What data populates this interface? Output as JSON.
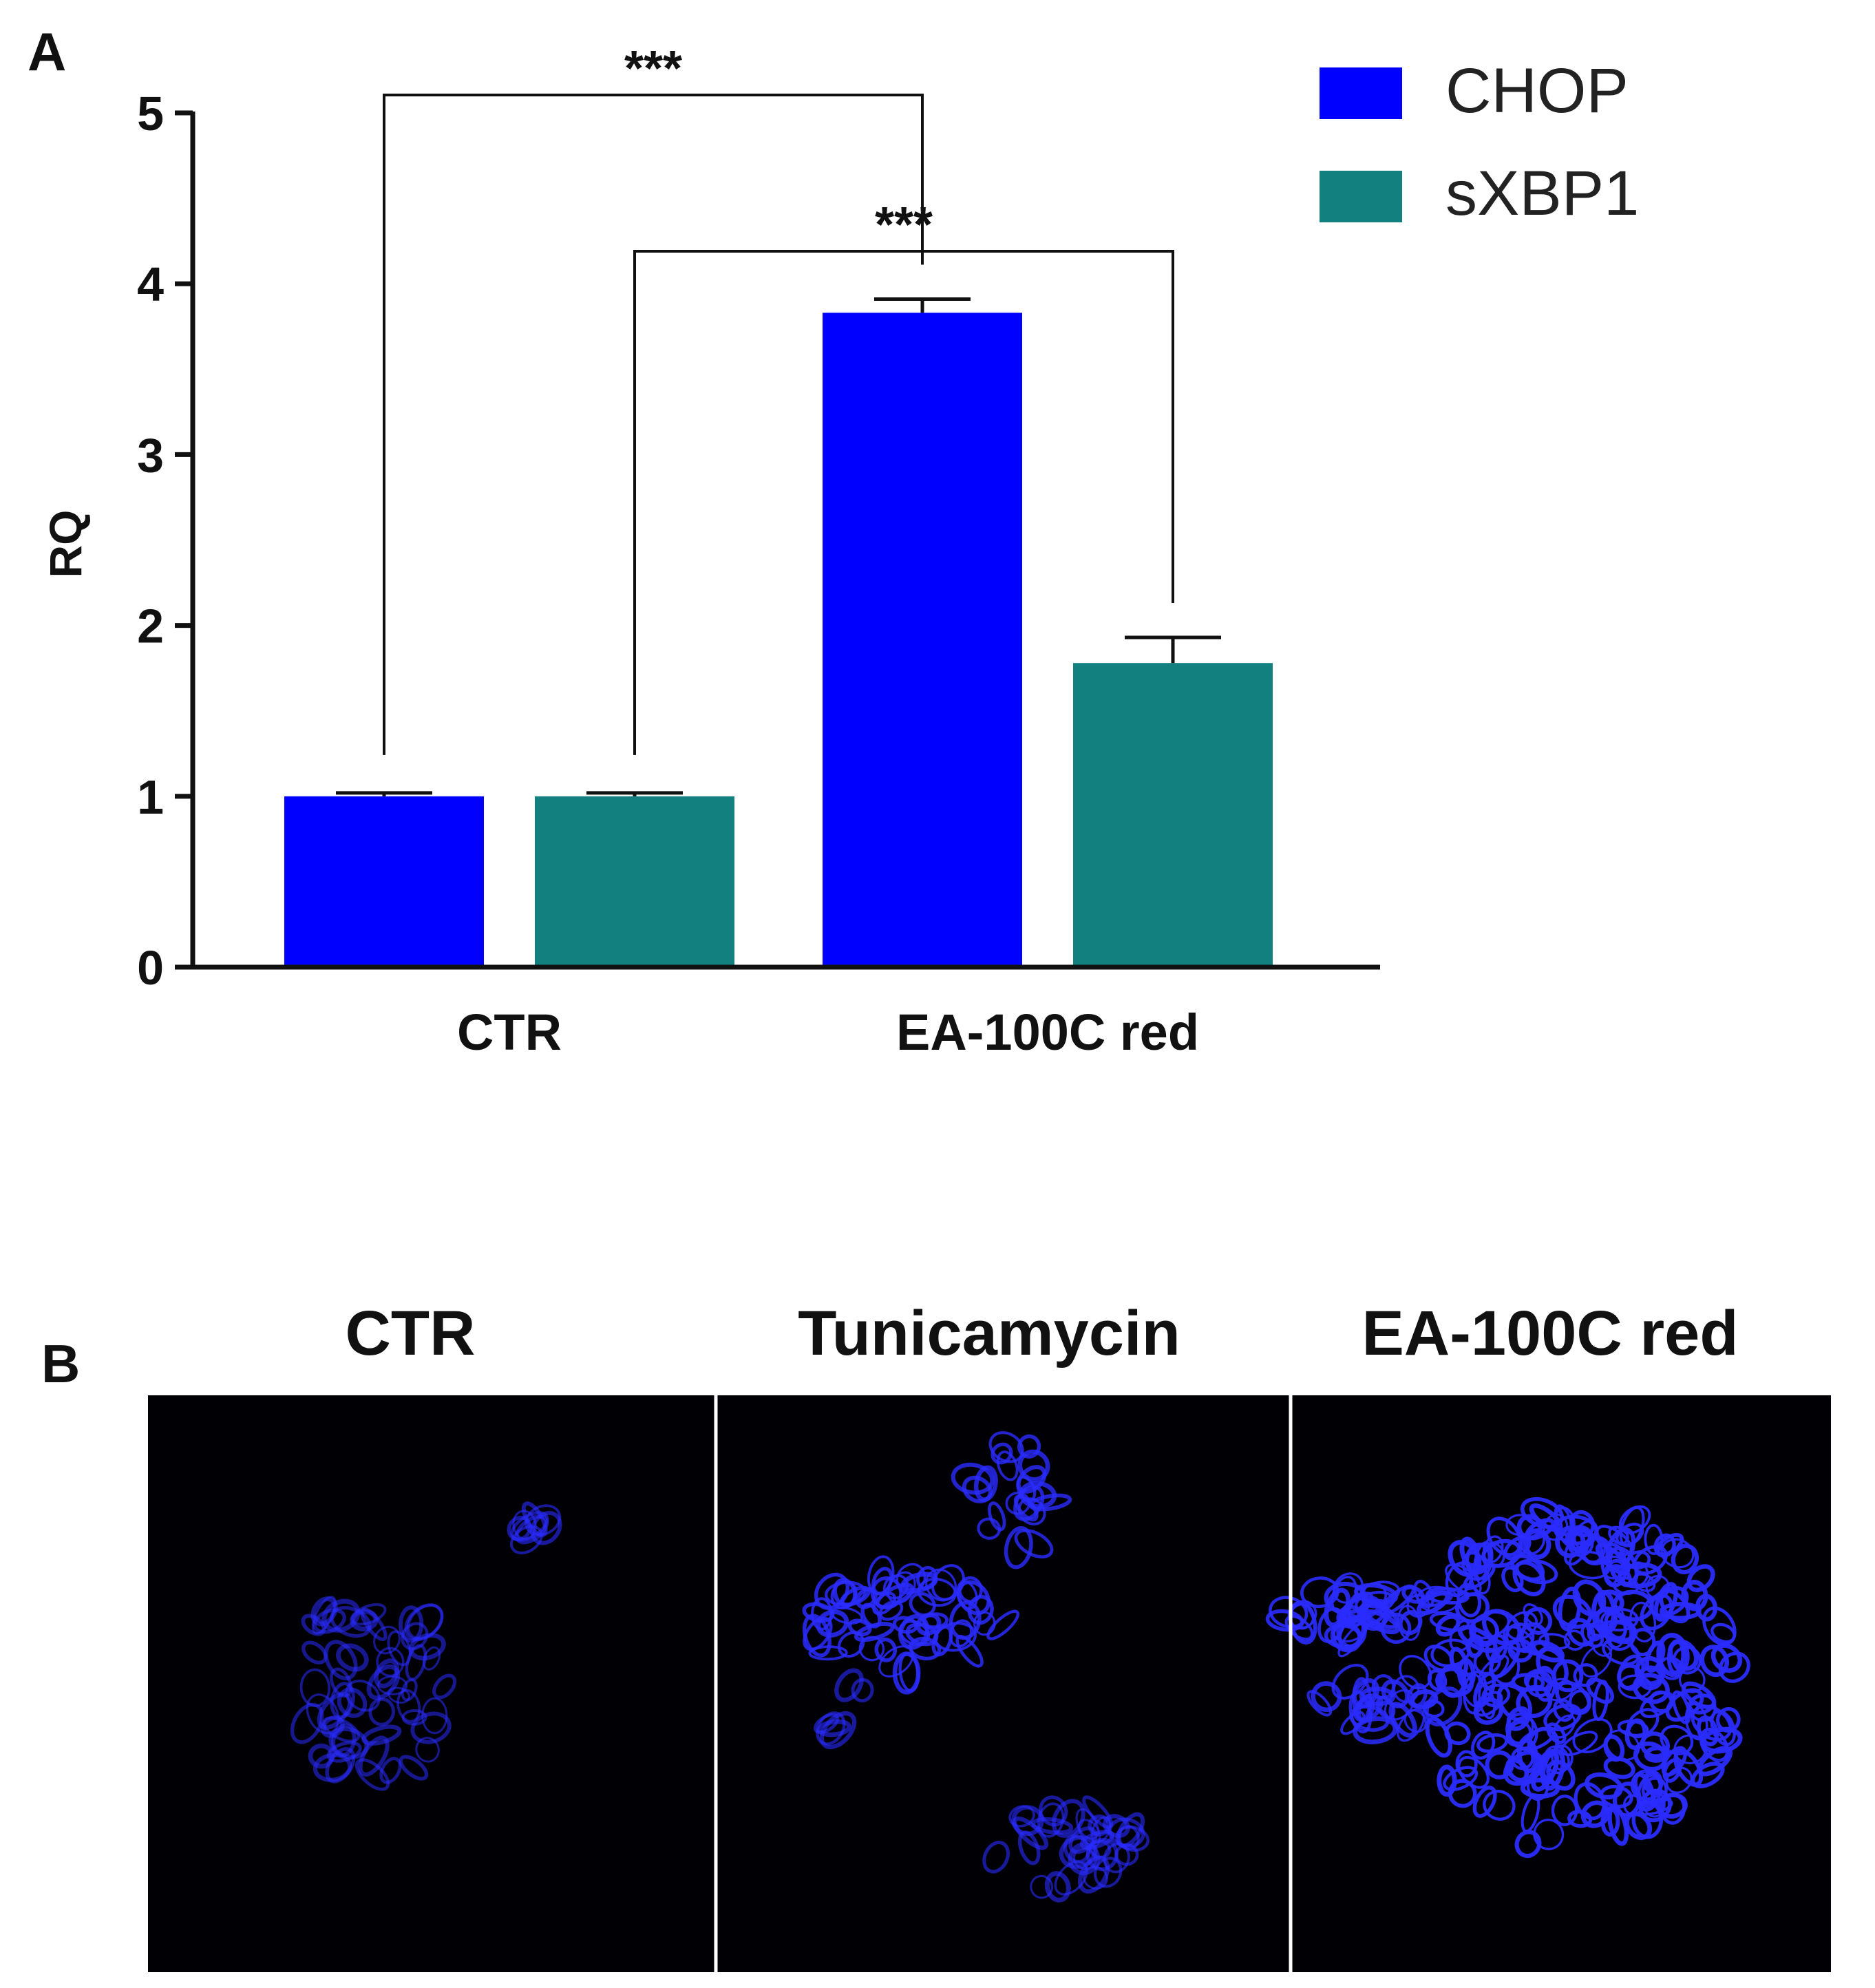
{
  "panel_a": {
    "label": "A"
  },
  "panel_b": {
    "label": "B",
    "images": [
      {
        "title": "CTR",
        "staining": "sparse"
      },
      {
        "title": "Tunicamycin",
        "staining": "moderate"
      },
      {
        "title": "EA-100C red",
        "staining": "dense"
      }
    ],
    "colors": {
      "background": "#000000",
      "stain": "#2a2cff",
      "separator": "#ffffff"
    }
  },
  "chart_data": {
    "type": "bar",
    "title": "",
    "xlabel": "",
    "ylabel": "RQ",
    "categories": [
      "CTR",
      "EA-100C red"
    ],
    "ylim": [
      0,
      5
    ],
    "yticks": [
      0,
      1,
      2,
      3,
      4,
      5
    ],
    "series": [
      {
        "name": "CHOP",
        "color": "#0000ff",
        "values": [
          1.0,
          3.83
        ],
        "errors": [
          0.02,
          0.08
        ]
      },
      {
        "name": "sXBP1",
        "color": "#138080",
        "values": [
          1.0,
          1.78
        ],
        "errors": [
          0.02,
          0.15
        ]
      }
    ],
    "legend": {
      "position": "top-right"
    },
    "grid": false,
    "annotations": [
      {
        "text": "***",
        "from": {
          "category": 0,
          "series": 0
        },
        "to": {
          "category": 1,
          "series": 0
        }
      },
      {
        "text": "***",
        "from": {
          "category": 0,
          "series": 1
        },
        "to": {
          "category": 1,
          "series": 1
        }
      }
    ]
  }
}
